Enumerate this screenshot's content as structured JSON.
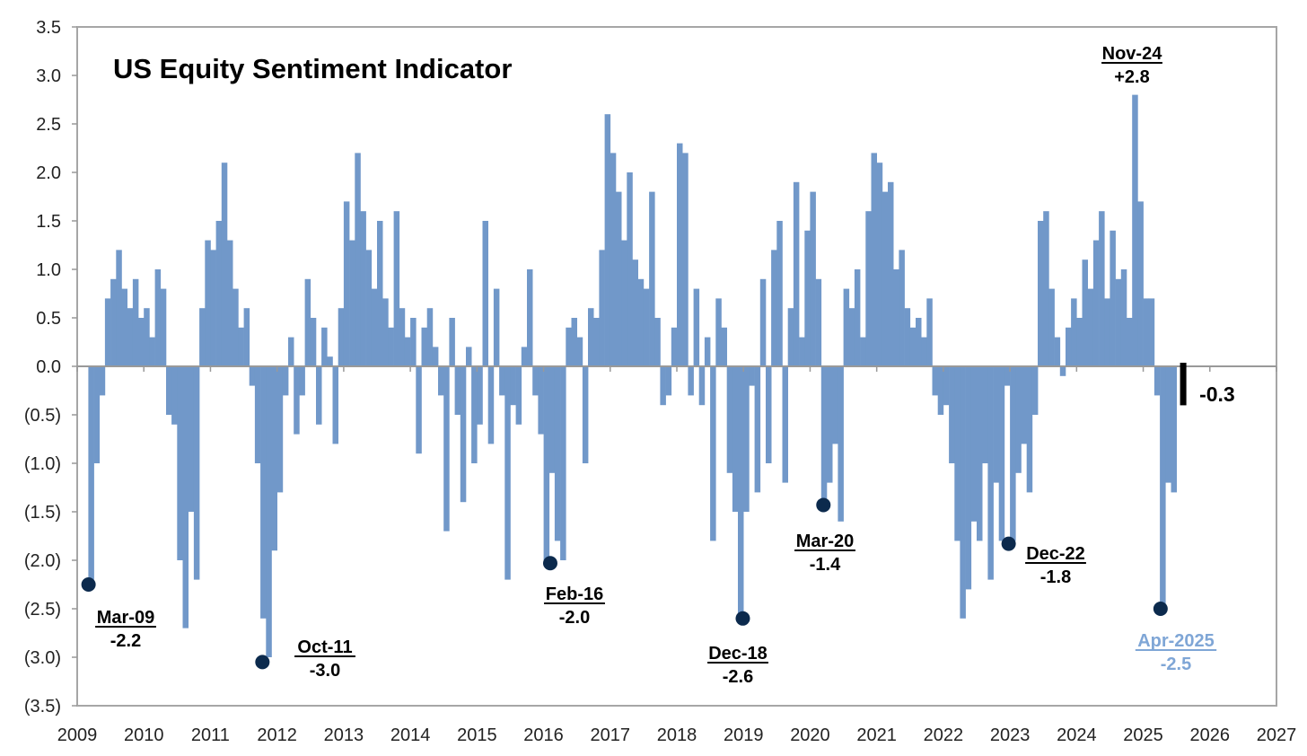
{
  "chart_data": {
    "type": "bar",
    "title": "US Equity Sentiment Indicator",
    "xlabel": "",
    "ylabel": "",
    "ylim": [
      -3.5,
      3.5
    ],
    "xlim": [
      2009,
      2027
    ],
    "grid": false,
    "frequency": "monthly (approximate)",
    "start": "2009-03",
    "x_ticks": [
      "2009",
      "2010",
      "2011",
      "2012",
      "2013",
      "2014",
      "2015",
      "2016",
      "2017",
      "2018",
      "2019",
      "2020",
      "2021",
      "2022",
      "2023",
      "2024",
      "2025",
      "2026",
      "2027"
    ],
    "y_ticks": [
      "3.5",
      "3.0",
      "2.5",
      "2.0",
      "1.5",
      "1.0",
      "0.5",
      "0.0",
      "(0.5)",
      "(1.0)",
      "(1.5)",
      "(2.0)",
      "(2.5)",
      "(3.0)",
      "(3.5)"
    ],
    "y_tick_values": [
      3.5,
      3.0,
      2.5,
      2.0,
      1.5,
      1.0,
      0.5,
      0,
      -0.5,
      -1.0,
      -1.5,
      -2.0,
      -2.5,
      -3.0,
      -3.5
    ],
    "values": [
      -2.2,
      -1.0,
      -0.3,
      0.7,
      0.9,
      1.2,
      0.8,
      0.6,
      0.9,
      0.5,
      0.6,
      0.3,
      1.0,
      0.8,
      -0.5,
      -0.6,
      -2.0,
      -2.7,
      -1.5,
      -2.2,
      0.6,
      1.3,
      1.2,
      1.5,
      2.1,
      1.3,
      0.8,
      0.4,
      0.6,
      -0.2,
      -1.0,
      -2.6,
      -3.0,
      -1.9,
      -1.3,
      -0.3,
      0.3,
      -0.7,
      -0.3,
      0.9,
      0.5,
      -0.6,
      0.4,
      0.1,
      -0.8,
      0.6,
      1.7,
      1.3,
      2.2,
      1.6,
      1.2,
      0.8,
      1.5,
      0.7,
      0.4,
      1.6,
      0.6,
      0.3,
      0.5,
      -0.9,
      0.4,
      0.6,
      0.2,
      -0.3,
      -1.7,
      0.5,
      -0.5,
      -1.4,
      0.2,
      -1.0,
      -0.6,
      1.5,
      -0.8,
      0.8,
      -0.3,
      -2.2,
      -0.4,
      -0.6,
      0.2,
      1.0,
      -0.3,
      -0.7,
      -2.0,
      -1.1,
      -1.8,
      -2.0,
      0.4,
      0.5,
      0.3,
      -1.0,
      0.6,
      0.5,
      1.2,
      2.6,
      2.2,
      1.8,
      1.3,
      2.0,
      1.1,
      0.9,
      0.8,
      1.8,
      0.5,
      -0.4,
      -0.3,
      0.4,
      2.3,
      2.2,
      -0.3,
      0.8,
      -0.4,
      0.3,
      -1.8,
      0.7,
      0.4,
      -1.1,
      -1.5,
      -2.6,
      -1.5,
      -0.2,
      -1.3,
      0.9,
      -1.0,
      1.2,
      1.5,
      -1.2,
      0.6,
      1.9,
      0.3,
      1.4,
      1.8,
      0.9,
      -1.4,
      -1.2,
      -0.8,
      -1.6,
      0.8,
      0.6,
      1.0,
      0.3,
      1.6,
      2.2,
      2.1,
      1.8,
      1.9,
      1.0,
      1.2,
      0.6,
      0.4,
      0.5,
      0.3,
      0.7,
      -0.3,
      -0.5,
      -0.4,
      -1.0,
      -1.8,
      -2.6,
      -2.3,
      -1.6,
      -1.8,
      -1.0,
      -2.2,
      -1.2,
      -1.8,
      -0.2,
      -1.8,
      -1.1,
      -0.8,
      -1.3,
      -0.5,
      1.5,
      1.6,
      0.8,
      0.3,
      -0.1,
      0.4,
      0.7,
      0.5,
      1.1,
      0.8,
      1.3,
      1.6,
      0.7,
      1.4,
      0.9,
      1.0,
      0.5,
      2.8,
      1.7,
      0.7,
      0.7,
      -0.3,
      -2.5,
      -1.2,
      -1.3
    ],
    "current": {
      "x": 2025.6,
      "value": -0.3,
      "label": "-0.3"
    },
    "annotations": [
      {
        "date": "Mar-09",
        "label": "-2.2",
        "x": 2009.17,
        "value": -2.25
      },
      {
        "date": "Oct-11",
        "label": "-3.0",
        "x": 2011.78,
        "value": -3.05
      },
      {
        "date": "Feb-16",
        "label": "-2.0",
        "x": 2016.1,
        "value": -2.03
      },
      {
        "date": "Dec-18",
        "label": "-2.6",
        "x": 2018.99,
        "value": -2.6
      },
      {
        "date": "Mar-20",
        "label": "-1.4",
        "x": 2020.2,
        "value": -1.43
      },
      {
        "date": "Dec-22",
        "label": "-1.8",
        "x": 2022.98,
        "value": -1.83
      },
      {
        "date": "Apr-2025",
        "label": "-2.5",
        "x": 2025.26,
        "value": -2.5
      },
      {
        "date": "Nov-24",
        "label": "+2.8",
        "x": 2024.87,
        "value": 2.8
      }
    ],
    "colors": {
      "bars": "#7198c9",
      "dots": "#0c2a4d",
      "highlight_label": "#7fa6d6",
      "current": "#000000",
      "axis": "#999999"
    }
  }
}
